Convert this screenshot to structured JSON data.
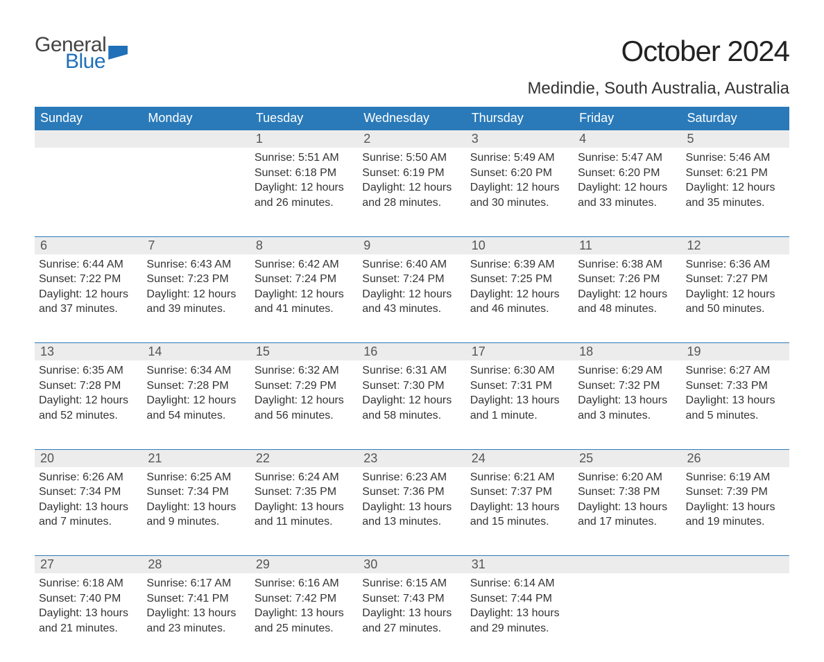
{
  "brand": {
    "general": "General",
    "blue": "Blue",
    "accent": "#1f70b8"
  },
  "title": "October 2024",
  "location": "Medindie, South Australia, Australia",
  "colors": {
    "header_bg": "#2a7ab9",
    "header_text": "#ffffff",
    "daynum_bg": "#ececec",
    "daynum_border": "#2a7ab9",
    "text": "#333333",
    "background": "#ffffff"
  },
  "typography": {
    "title_fontsize": 42,
    "location_fontsize": 24,
    "dayheader_fontsize": 18,
    "daynum_fontsize": 18,
    "body_fontsize": 16
  },
  "day_names": [
    "Sunday",
    "Monday",
    "Tuesday",
    "Wednesday",
    "Thursday",
    "Friday",
    "Saturday"
  ],
  "weeks": [
    [
      null,
      null,
      {
        "n": "1",
        "sunrise": "5:51 AM",
        "sunset": "6:18 PM",
        "daylight": "12 hours and 26 minutes."
      },
      {
        "n": "2",
        "sunrise": "5:50 AM",
        "sunset": "6:19 PM",
        "daylight": "12 hours and 28 minutes."
      },
      {
        "n": "3",
        "sunrise": "5:49 AM",
        "sunset": "6:20 PM",
        "daylight": "12 hours and 30 minutes."
      },
      {
        "n": "4",
        "sunrise": "5:47 AM",
        "sunset": "6:20 PM",
        "daylight": "12 hours and 33 minutes."
      },
      {
        "n": "5",
        "sunrise": "5:46 AM",
        "sunset": "6:21 PM",
        "daylight": "12 hours and 35 minutes."
      }
    ],
    [
      {
        "n": "6",
        "sunrise": "6:44 AM",
        "sunset": "7:22 PM",
        "daylight": "12 hours and 37 minutes."
      },
      {
        "n": "7",
        "sunrise": "6:43 AM",
        "sunset": "7:23 PM",
        "daylight": "12 hours and 39 minutes."
      },
      {
        "n": "8",
        "sunrise": "6:42 AM",
        "sunset": "7:24 PM",
        "daylight": "12 hours and 41 minutes."
      },
      {
        "n": "9",
        "sunrise": "6:40 AM",
        "sunset": "7:24 PM",
        "daylight": "12 hours and 43 minutes."
      },
      {
        "n": "10",
        "sunrise": "6:39 AM",
        "sunset": "7:25 PM",
        "daylight": "12 hours and 46 minutes."
      },
      {
        "n": "11",
        "sunrise": "6:38 AM",
        "sunset": "7:26 PM",
        "daylight": "12 hours and 48 minutes."
      },
      {
        "n": "12",
        "sunrise": "6:36 AM",
        "sunset": "7:27 PM",
        "daylight": "12 hours and 50 minutes."
      }
    ],
    [
      {
        "n": "13",
        "sunrise": "6:35 AM",
        "sunset": "7:28 PM",
        "daylight": "12 hours and 52 minutes."
      },
      {
        "n": "14",
        "sunrise": "6:34 AM",
        "sunset": "7:28 PM",
        "daylight": "12 hours and 54 minutes."
      },
      {
        "n": "15",
        "sunrise": "6:32 AM",
        "sunset": "7:29 PM",
        "daylight": "12 hours and 56 minutes."
      },
      {
        "n": "16",
        "sunrise": "6:31 AM",
        "sunset": "7:30 PM",
        "daylight": "12 hours and 58 minutes."
      },
      {
        "n": "17",
        "sunrise": "6:30 AM",
        "sunset": "7:31 PM",
        "daylight": "13 hours and 1 minute."
      },
      {
        "n": "18",
        "sunrise": "6:29 AM",
        "sunset": "7:32 PM",
        "daylight": "13 hours and 3 minutes."
      },
      {
        "n": "19",
        "sunrise": "6:27 AM",
        "sunset": "7:33 PM",
        "daylight": "13 hours and 5 minutes."
      }
    ],
    [
      {
        "n": "20",
        "sunrise": "6:26 AM",
        "sunset": "7:34 PM",
        "daylight": "13 hours and 7 minutes."
      },
      {
        "n": "21",
        "sunrise": "6:25 AM",
        "sunset": "7:34 PM",
        "daylight": "13 hours and 9 minutes."
      },
      {
        "n": "22",
        "sunrise": "6:24 AM",
        "sunset": "7:35 PM",
        "daylight": "13 hours and 11 minutes."
      },
      {
        "n": "23",
        "sunrise": "6:23 AM",
        "sunset": "7:36 PM",
        "daylight": "13 hours and 13 minutes."
      },
      {
        "n": "24",
        "sunrise": "6:21 AM",
        "sunset": "7:37 PM",
        "daylight": "13 hours and 15 minutes."
      },
      {
        "n": "25",
        "sunrise": "6:20 AM",
        "sunset": "7:38 PM",
        "daylight": "13 hours and 17 minutes."
      },
      {
        "n": "26",
        "sunrise": "6:19 AM",
        "sunset": "7:39 PM",
        "daylight": "13 hours and 19 minutes."
      }
    ],
    [
      {
        "n": "27",
        "sunrise": "6:18 AM",
        "sunset": "7:40 PM",
        "daylight": "13 hours and 21 minutes."
      },
      {
        "n": "28",
        "sunrise": "6:17 AM",
        "sunset": "7:41 PM",
        "daylight": "13 hours and 23 minutes."
      },
      {
        "n": "29",
        "sunrise": "6:16 AM",
        "sunset": "7:42 PM",
        "daylight": "13 hours and 25 minutes."
      },
      {
        "n": "30",
        "sunrise": "6:15 AM",
        "sunset": "7:43 PM",
        "daylight": "13 hours and 27 minutes."
      },
      {
        "n": "31",
        "sunrise": "6:14 AM",
        "sunset": "7:44 PM",
        "daylight": "13 hours and 29 minutes."
      },
      null,
      null
    ]
  ],
  "labels": {
    "sunrise": "Sunrise:",
    "sunset": "Sunset:",
    "daylight": "Daylight:"
  }
}
